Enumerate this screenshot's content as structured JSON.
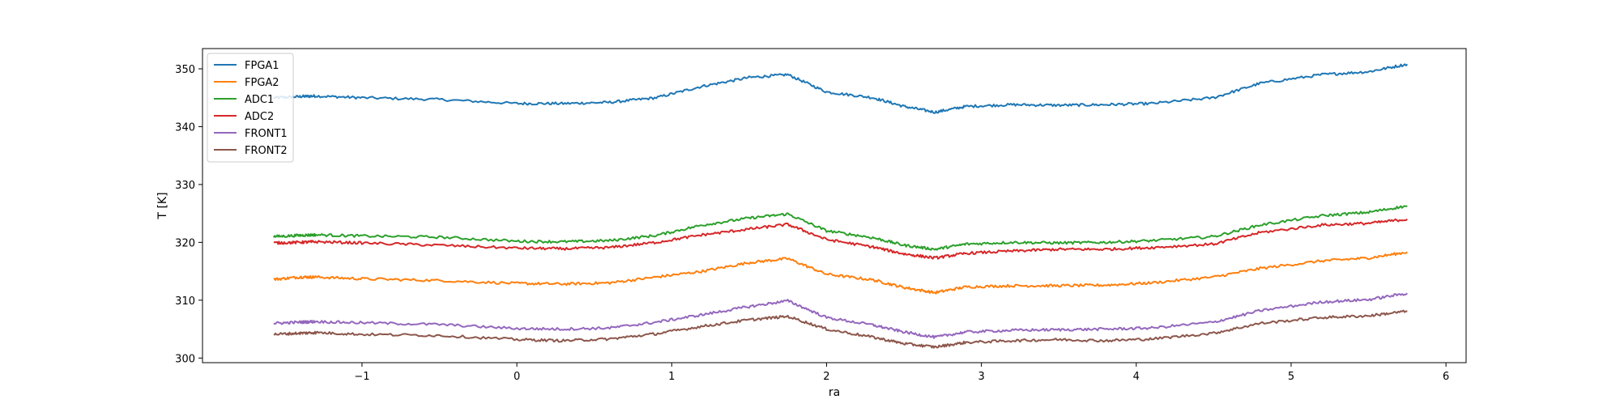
{
  "chart_data": {
    "type": "line",
    "title": "",
    "xlabel": "ra",
    "ylabel": "T [K]",
    "xlim": [
      -2.03,
      6.13
    ],
    "ylim": [
      299.2,
      353.5
    ],
    "xticks": [
      -1,
      0,
      1,
      2,
      3,
      4,
      5,
      6
    ],
    "xtick_labels": [
      "−1",
      "0",
      "1",
      "2",
      "3",
      "4",
      "5",
      "6"
    ],
    "yticks": [
      300,
      310,
      320,
      330,
      340,
      350
    ],
    "ytick_labels": [
      "300",
      "310",
      "320",
      "330",
      "340",
      "350"
    ],
    "grid": false,
    "legend_position": "top-left",
    "x": [
      -1.57,
      -1.4,
      -1.3,
      -1.0,
      -0.5,
      0.0,
      0.3,
      0.6,
      0.9,
      1.2,
      1.5,
      1.75,
      2.0,
      2.3,
      2.5,
      2.7,
      2.9,
      3.2,
      3.5,
      3.8,
      4.1,
      4.5,
      4.8,
      5.2,
      5.5,
      5.75
    ],
    "series": [
      {
        "name": "FPGA1",
        "color": "#1f77b4",
        "values": [
          345.0,
          345.2,
          345.3,
          345.0,
          344.7,
          344.0,
          344.0,
          344.2,
          345.0,
          347.0,
          348.5,
          349.0,
          346.0,
          345.0,
          343.5,
          342.5,
          343.5,
          343.8,
          343.7,
          343.8,
          344.0,
          345.0,
          347.5,
          349.0,
          349.5,
          350.8
        ]
      },
      {
        "name": "FPGA2",
        "color": "#ff7f0e",
        "values": [
          313.6,
          314.0,
          314.0,
          313.7,
          313.4,
          312.9,
          312.8,
          313.0,
          314.0,
          315.0,
          316.5,
          317.2,
          314.5,
          313.5,
          312.2,
          311.3,
          312.3,
          312.5,
          312.5,
          312.6,
          313.0,
          314.0,
          315.5,
          316.8,
          317.3,
          318.3
        ]
      },
      {
        "name": "ADC1",
        "color": "#2ca02c",
        "values": [
          321.0,
          321.2,
          321.3,
          321.1,
          320.9,
          320.2,
          320.1,
          320.3,
          321.2,
          323.0,
          324.2,
          324.9,
          322.0,
          320.8,
          319.5,
          318.8,
          319.7,
          320.0,
          319.9,
          320.0,
          320.3,
          321.0,
          323.0,
          324.6,
          325.2,
          326.3
        ]
      },
      {
        "name": "ADC2",
        "color": "#d62728",
        "values": [
          319.9,
          320.0,
          320.1,
          319.9,
          319.5,
          319.0,
          318.9,
          319.1,
          320.0,
          321.3,
          322.3,
          323.1,
          320.5,
          319.2,
          318.0,
          317.3,
          318.1,
          318.5,
          318.8,
          318.8,
          319.1,
          319.7,
          321.7,
          323.0,
          323.3,
          324.0
        ]
      },
      {
        "name": "FRONT1",
        "color": "#9467bd",
        "values": [
          306.0,
          306.2,
          306.3,
          306.1,
          305.8,
          305.1,
          305.0,
          305.2,
          306.2,
          307.5,
          308.9,
          309.9,
          307.0,
          305.7,
          304.5,
          303.6,
          304.5,
          304.8,
          304.9,
          305.0,
          305.2,
          306.2,
          308.2,
          309.7,
          310.1,
          311.2
        ]
      },
      {
        "name": "FRONT2",
        "color": "#8c564b",
        "values": [
          304.1,
          304.3,
          304.4,
          304.1,
          303.9,
          303.2,
          303.0,
          303.3,
          304.2,
          305.5,
          306.6,
          307.2,
          305.0,
          303.6,
          302.5,
          301.9,
          302.7,
          303.0,
          303.2,
          303.0,
          303.3,
          304.3,
          306.0,
          307.0,
          307.3,
          308.1
        ]
      }
    ]
  }
}
